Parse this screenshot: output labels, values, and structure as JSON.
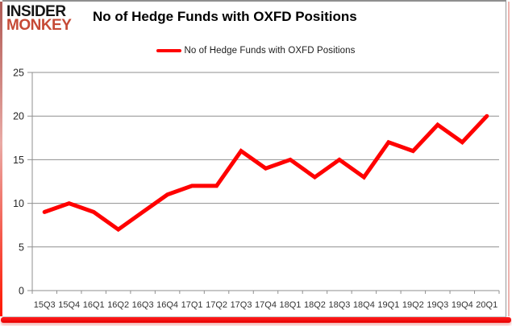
{
  "brand": {
    "line1": "INSIDER",
    "line2": "MONKEY"
  },
  "header": {
    "title": "No of Hedge Funds with OXFD Positions"
  },
  "legend": {
    "label": "No of Hedge Funds with OXFD Positions"
  },
  "colors": {
    "series_line": "#ff0000",
    "grid": "#8f8f8f",
    "axis_text": "#262626",
    "brand_black": "#161616",
    "brand_red": "#c64a36",
    "frame_red": "#ff1500"
  },
  "chart_data": {
    "type": "line",
    "title": "No of Hedge Funds with OXFD Positions",
    "categories": [
      "15Q3",
      "15Q4",
      "16Q1",
      "16Q2",
      "16Q3",
      "16Q4",
      "17Q1",
      "17Q2",
      "17Q3",
      "17Q4",
      "18Q1",
      "18Q2",
      "18Q3",
      "18Q4",
      "19Q1",
      "19Q2",
      "19Q3",
      "19Q4",
      "20Q1"
    ],
    "series": [
      {
        "name": "No of Hedge Funds with OXFD Positions",
        "color": "#ff0000",
        "values": [
          9,
          10,
          9,
          7,
          9,
          11,
          12,
          12,
          16,
          14,
          15,
          13,
          15,
          13,
          17,
          16,
          19,
          17,
          20
        ]
      }
    ],
    "xlabel": "",
    "ylabel": "",
    "ylim": [
      0,
      25
    ],
    "yticks": [
      0,
      5,
      10,
      15,
      20,
      25
    ],
    "grid": "horizontal",
    "legend_position": "top-center"
  }
}
